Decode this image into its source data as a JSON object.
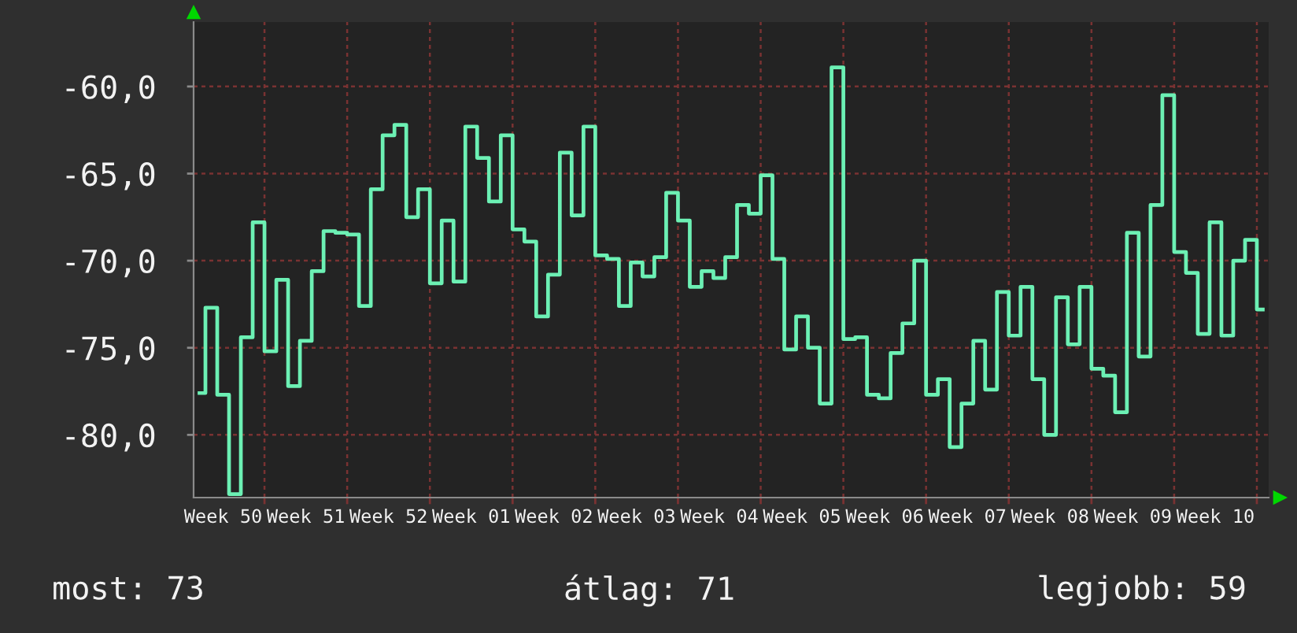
{
  "chart_data": {
    "type": "step",
    "color": "#6cf0b4",
    "categories": [
      null,
      null,
      "Week 50",
      null,
      null,
      null,
      null,
      null,
      null,
      "Week 51",
      null,
      null,
      null,
      null,
      null,
      null,
      "Week 52",
      null,
      null,
      null,
      null,
      null,
      null,
      "Week 01",
      null,
      null,
      null,
      null,
      null,
      null,
      "Week 02",
      null,
      null,
      null,
      null,
      null,
      null,
      "Week 03",
      null,
      null,
      null,
      null,
      null,
      null,
      "Week 04",
      null,
      null,
      null,
      null,
      null,
      null,
      "Week 05",
      null,
      null,
      null,
      null,
      null,
      null,
      "Week 06",
      null,
      null,
      null,
      null,
      null,
      null,
      "Week 07",
      null,
      null,
      null,
      null,
      null,
      null,
      "Week 08",
      null,
      null,
      null,
      null,
      null,
      null,
      "Week 09",
      null,
      null,
      null,
      null,
      null,
      null,
      "Week 10",
      null,
      null,
      null,
      null
    ],
    "values": [
      -77.6,
      -72.7,
      -77.7,
      -83.4,
      -74.4,
      -67.8,
      -75.2,
      -71.1,
      -77.2,
      -74.6,
      -70.6,
      -68.3,
      -68.4,
      -68.5,
      -72.6,
      -65.9,
      -62.8,
      -62.2,
      -67.5,
      -65.9,
      -71.3,
      -67.7,
      -71.2,
      -62.3,
      -64.1,
      -66.6,
      -62.8,
      -68.2,
      -68.9,
      -73.2,
      -70.8,
      -63.8,
      -67.4,
      -62.3,
      -69.7,
      -69.9,
      -72.6,
      -70.1,
      -70.9,
      -69.8,
      -66.1,
      -67.7,
      -71.5,
      -70.6,
      -71.0,
      -69.8,
      -66.8,
      -67.3,
      -65.1,
      -69.9,
      -75.1,
      -73.2,
      -75.0,
      -78.2,
      -58.9,
      -74.5,
      -74.4,
      -77.7,
      -77.9,
      -75.3,
      -73.6,
      -70.0,
      -77.7,
      -76.8,
      -80.7,
      -78.2,
      -74.6,
      -77.4,
      -71.8,
      -74.3,
      -71.5,
      -76.8,
      -80.0,
      -72.1,
      -74.8,
      -71.5,
      -76.2,
      -76.6,
      -78.7,
      -68.4,
      -75.5,
      -66.8,
      -60.5,
      -69.5,
      -70.7,
      -74.2,
      -67.8,
      -74.3,
      -70.0,
      -68.8,
      -72.8
    ],
    "ylim": [
      -83.6,
      -56.3
    ],
    "yticks": [
      {
        "value": -80,
        "label": "-80,0"
      },
      {
        "value": -75,
        "label": "-75,0"
      },
      {
        "value": -70,
        "label": "-70,0"
      },
      {
        "value": -65,
        "label": "-65,0"
      },
      {
        "value": -60,
        "label": "-60,0"
      }
    ],
    "grid": true,
    "annotations": [
      "most: 73",
      "átlag: 71",
      "legjobb: 59"
    ]
  }
}
